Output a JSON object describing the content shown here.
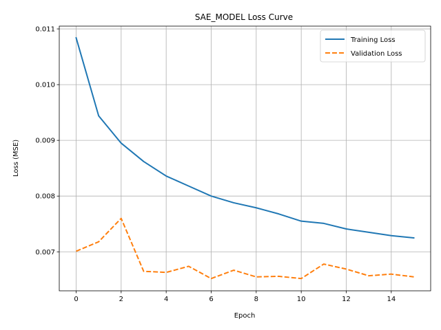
{
  "chart_data": {
    "type": "line",
    "title": "SAE_MODEL Loss Curve",
    "xlabel": "Epoch",
    "ylabel": "Loss (MSE)",
    "x": [
      0,
      1,
      2,
      3,
      4,
      5,
      6,
      7,
      8,
      9,
      10,
      11,
      12,
      13,
      14,
      15
    ],
    "xlim": [
      -0.75,
      15.75
    ],
    "ylim": [
      0.0063,
      0.01105
    ],
    "xticks": [
      0,
      2,
      4,
      6,
      8,
      10,
      12,
      14
    ],
    "xtick_labels": [
      "0",
      "2",
      "4",
      "6",
      "8",
      "10",
      "12",
      "14"
    ],
    "yticks": [
      0.007,
      0.008,
      0.009,
      0.01,
      0.011
    ],
    "ytick_labels": [
      "0.007",
      "0.008",
      "0.009",
      "0.010",
      "0.011"
    ],
    "grid": true,
    "legend_position": "top-right",
    "series": [
      {
        "name": "Training Loss",
        "color": "#1f77b4",
        "dash": "solid",
        "values": [
          0.01084,
          0.00944,
          0.00895,
          0.00862,
          0.00836,
          0.00818,
          0.008,
          0.00788,
          0.00779,
          0.00768,
          0.00755,
          0.00751,
          0.00741,
          0.00735,
          0.00729,
          0.00725
        ]
      },
      {
        "name": "Validation Loss",
        "color": "#ff7f0e",
        "dash": "dashed",
        "values": [
          0.00701,
          0.00718,
          0.0076,
          0.00665,
          0.00663,
          0.00674,
          0.00652,
          0.00667,
          0.00655,
          0.00656,
          0.00652,
          0.00678,
          0.00669,
          0.00657,
          0.0066,
          0.00655
        ]
      }
    ]
  }
}
